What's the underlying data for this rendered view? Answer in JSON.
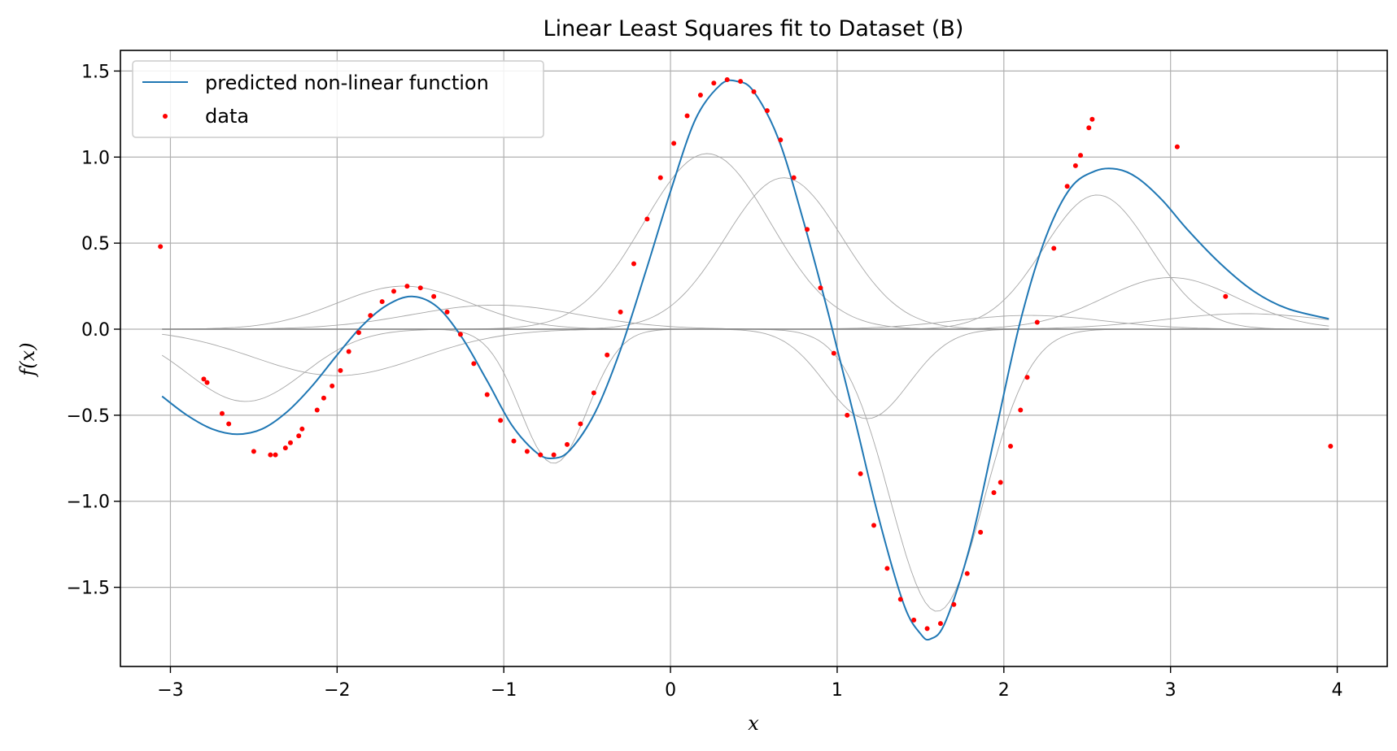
{
  "chart_data": {
    "type": "line",
    "title": "Linear Least Squares fit to Dataset (B)",
    "xlabel": "x",
    "ylabel": "f(x)",
    "xlim": [
      -3.3,
      4.3
    ],
    "ylim": [
      -1.96,
      1.62
    ],
    "x_ticks": [
      -3,
      -2,
      -1,
      0,
      1,
      2,
      3,
      4
    ],
    "x_tick_labels": [
      "−3",
      "−2",
      "−1",
      "0",
      "1",
      "2",
      "3",
      "4"
    ],
    "y_ticks": [
      -1.5,
      -1.0,
      -0.5,
      0.0,
      0.5,
      1.0,
      1.5
    ],
    "y_tick_labels": [
      "−1.5",
      "−1.0",
      "−0.5",
      "0.0",
      "0.5",
      "1.0",
      "1.5"
    ],
    "grid": true,
    "legend_position": "top-left",
    "series": [
      {
        "name": "predicted non-linear function",
        "kind": "line",
        "color": "#1f77b4",
        "x": [
          -3.05,
          -2.9,
          -2.75,
          -2.6,
          -2.45,
          -2.3,
          -2.15,
          -2.0,
          -1.85,
          -1.7,
          -1.55,
          -1.4,
          -1.25,
          -1.1,
          -0.95,
          -0.8,
          -0.7,
          -0.6,
          -0.45,
          -0.3,
          -0.15,
          0.0,
          0.15,
          0.3,
          0.4,
          0.5,
          0.65,
          0.8,
          0.95,
          1.1,
          1.25,
          1.4,
          1.5,
          1.56,
          1.65,
          1.8,
          1.95,
          2.1,
          2.25,
          2.4,
          2.55,
          2.68,
          2.8,
          2.95,
          3.1,
          3.3,
          3.5,
          3.7,
          3.95
        ],
        "y": [
          -0.39,
          -0.5,
          -0.58,
          -0.61,
          -0.58,
          -0.48,
          -0.33,
          -0.15,
          0.02,
          0.14,
          0.19,
          0.13,
          -0.05,
          -0.3,
          -0.56,
          -0.72,
          -0.75,
          -0.7,
          -0.48,
          -0.12,
          0.33,
          0.8,
          1.22,
          1.42,
          1.44,
          1.38,
          1.1,
          0.62,
          0.08,
          -0.5,
          -1.1,
          -1.6,
          -1.77,
          -1.8,
          -1.7,
          -1.25,
          -0.6,
          0.05,
          0.53,
          0.82,
          0.92,
          0.93,
          0.88,
          0.75,
          0.58,
          0.38,
          0.22,
          0.12,
          0.06
        ]
      },
      {
        "name": "data",
        "kind": "scatter",
        "color": "#ff0000",
        "x": [
          -3.06,
          -2.8,
          -2.78,
          -2.69,
          -2.65,
          -2.5,
          -2.4,
          -2.37,
          -2.31,
          -2.28,
          -2.23,
          -2.21,
          -2.12,
          -2.08,
          -2.03,
          -1.98,
          -1.93,
          -1.87,
          -1.8,
          -1.73,
          -1.66,
          -1.58,
          -1.5,
          -1.42,
          -1.34,
          -1.26,
          -1.18,
          -1.1,
          -1.02,
          -0.94,
          -0.86,
          -0.78,
          -0.7,
          -0.62,
          -0.54,
          -0.46,
          -0.38,
          -0.3,
          -0.22,
          -0.14,
          -0.06,
          0.02,
          0.1,
          0.18,
          0.26,
          0.34,
          0.42,
          0.5,
          0.58,
          0.66,
          0.74,
          0.82,
          0.9,
          0.98,
          1.06,
          1.14,
          1.22,
          1.3,
          1.38,
          1.46,
          1.54,
          1.62,
          1.7,
          1.78,
          1.86,
          1.94,
          1.98,
          2.04,
          2.1,
          2.14,
          2.2,
          2.3,
          2.38,
          2.43,
          2.46,
          2.51,
          2.53,
          3.04,
          3.33,
          3.96
        ],
        "y": [
          0.48,
          -0.29,
          -0.31,
          -0.49,
          -0.55,
          -0.71,
          -0.73,
          -0.73,
          -0.69,
          -0.66,
          -0.62,
          -0.58,
          -0.47,
          -0.4,
          -0.33,
          -0.24,
          -0.13,
          -0.02,
          0.08,
          0.16,
          0.22,
          0.25,
          0.24,
          0.19,
          0.1,
          -0.03,
          -0.2,
          -0.38,
          -0.53,
          -0.65,
          -0.71,
          -0.73,
          -0.73,
          -0.67,
          -0.55,
          -0.37,
          -0.15,
          0.1,
          0.38,
          0.64,
          0.88,
          1.08,
          1.24,
          1.36,
          1.43,
          1.45,
          1.44,
          1.38,
          1.27,
          1.1,
          0.88,
          0.58,
          0.24,
          -0.14,
          -0.5,
          -0.84,
          -1.14,
          -1.39,
          -1.57,
          -1.69,
          -1.74,
          -1.71,
          -1.6,
          -1.42,
          -1.18,
          -0.95,
          -0.89,
          -0.68,
          -0.47,
          -0.28,
          0.04,
          0.47,
          0.83,
          0.95,
          1.01,
          1.17,
          1.22,
          1.06,
          0.19,
          -0.68
        ]
      }
    ],
    "basis_functions": {
      "color": "#a6a6a6",
      "x_range": [
        -3.05,
        3.95
      ],
      "note_components": [
        {
          "center": -1.6,
          "width": 0.4,
          "amplitude": 0.25
        },
        {
          "center": -1.05,
          "width": 0.5,
          "amplitude": 0.14
        },
        {
          "center": -2.55,
          "width": 0.35,
          "amplitude": -0.42
        },
        {
          "center": -2.0,
          "width": 0.5,
          "amplitude": -0.27
        },
        {
          "center": -0.7,
          "width": 0.2,
          "amplitude": -0.78
        },
        {
          "center": 0.22,
          "width": 0.38,
          "amplitude": 1.02
        },
        {
          "center": 0.68,
          "width": 0.35,
          "amplitude": 0.88
        },
        {
          "center": 1.18,
          "width": 0.25,
          "amplitude": -0.52
        },
        {
          "center": 1.6,
          "width": 0.28,
          "amplitude": -1.64
        },
        {
          "center": 2.56,
          "width": 0.32,
          "amplitude": 0.78
        },
        {
          "center": 2.15,
          "width": 0.45,
          "amplitude": 0.08
        },
        {
          "center": 3.0,
          "width": 0.4,
          "amplitude": 0.3
        },
        {
          "center": 3.45,
          "width": 0.5,
          "amplitude": 0.09
        }
      ]
    }
  }
}
